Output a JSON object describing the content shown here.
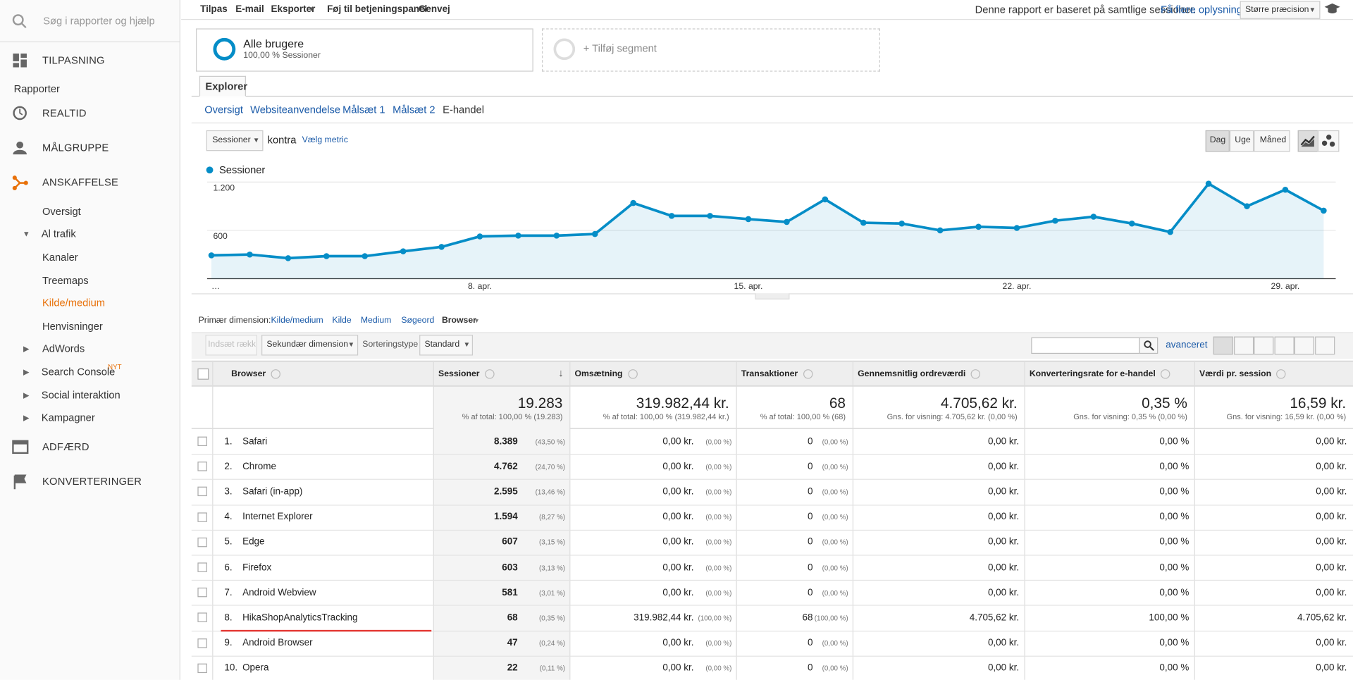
{
  "sidebar": {
    "search": "Søg i rapporter og hjælp",
    "customization": "TILPASNING",
    "reports": "Rapporter",
    "sections": [
      "REALTID",
      "MÅLGRUPPE",
      "ANSKAFFELSE",
      "ADFÆRD",
      "KONVERTERINGER"
    ],
    "acquisition": [
      "Oversigt",
      "Al trafik",
      "Kanaler",
      "Treemaps",
      "Kilde/medium",
      "Henvisninger",
      "AdWords",
      "Search Console",
      "Social interaktion",
      "Kampagner"
    ],
    "badge": "NYT"
  },
  "toolbar": {
    "actions": [
      "Tilpas",
      "E-mail",
      "Eksporter",
      "Føj til betjeningspanel",
      "Genvej"
    ],
    "note": "Denne rapport er baseret på samtlige sessioner.",
    "link": "Få flere oplysninger",
    "precision": "Større præcision"
  },
  "segments": {
    "active": {
      "name": "Alle brugere",
      "detail": "100,00 % Sessioner"
    },
    "add": "+ Tilføj segment"
  },
  "tab": "Explorer",
  "subtabs": [
    "Oversigt",
    "Websiteanvendelse",
    "Målsæt 1",
    "Målsæt 2",
    "E-handel"
  ],
  "metric": {
    "selected": "Sessioner",
    "versus": "kontra",
    "choose": "Vælg metric"
  },
  "granularity": [
    "Dag",
    "Uge",
    "Måned"
  ],
  "chart_data": {
    "type": "area",
    "categories": [
      "…",
      null,
      null,
      null,
      null,
      null,
      null,
      "8. apr.",
      null,
      null,
      null,
      null,
      null,
      null,
      "15. apr.",
      null,
      null,
      null,
      null,
      null,
      null,
      "22. apr.",
      null,
      null,
      null,
      null,
      null,
      null,
      "29. apr.",
      null
    ],
    "series": [
      {
        "name": "Sessioner",
        "color": "#058dc7",
        "values": [
          290,
          300,
          255,
          280,
          280,
          340,
          395,
          525,
          535,
          535,
          555,
          940,
          780,
          780,
          740,
          705,
          985,
          695,
          685,
          600,
          645,
          630,
          720,
          770,
          685,
          580,
          1180,
          900,
          1105,
          845
        ]
      }
    ],
    "ylim": [
      0,
      1200
    ],
    "yticks": [
      600,
      {
        "value": 1200,
        "label": "1.200"
      }
    ],
    "grid": true
  },
  "dimension": {
    "label": "Primær dimension:",
    "options": [
      "Kilde/medium",
      "Kilde",
      "Medium",
      "Søgeord",
      "Browser"
    ]
  },
  "table_tools": {
    "insert_row": "Indsæt række",
    "secondary": "Sekundær dimension",
    "sort_label": "Sorteringstype",
    "sort": "Standard",
    "advanced": "avanceret"
  },
  "table": {
    "headers": [
      "Browser",
      "Sessioner",
      "Omsætning",
      "Transaktioner",
      "Gennemsnitlig ordreværdi",
      "Konverteringsrate for e-handel",
      "Værdi pr. session"
    ],
    "totals": [
      [
        "19.283",
        "% af total: 100,00 % (19.283)"
      ],
      [
        "319.982,44 kr.",
        "% af total: 100,00 % (319.982,44 kr.)"
      ],
      [
        "68",
        "% af total: 100,00 % (68)"
      ],
      [
        "4.705,62 kr.",
        "Gns. for visning: 4.705,62 kr. (0,00 %)"
      ],
      [
        "0,35 %",
        "Gns. for visning: 0,35 % (0,00 %)"
      ],
      [
        "16,59 kr.",
        "Gns. for visning: 16,59 kr. (0,00 %)"
      ]
    ],
    "rows": [
      [
        "1.",
        "Safari",
        "8.389",
        "(43,50 %)",
        "0,00 kr.",
        "(0,00 %)",
        "0",
        "(0,00 %)",
        "0,00 kr.",
        "0,00 %",
        "0,00 kr."
      ],
      [
        "2.",
        "Chrome",
        "4.762",
        "(24,70 %)",
        "0,00 kr.",
        "(0,00 %)",
        "0",
        "(0,00 %)",
        "0,00 kr.",
        "0,00 %",
        "0,00 kr."
      ],
      [
        "3.",
        "Safari (in-app)",
        "2.595",
        "(13,46 %)",
        "0,00 kr.",
        "(0,00 %)",
        "0",
        "(0,00 %)",
        "0,00 kr.",
        "0,00 %",
        "0,00 kr."
      ],
      [
        "4.",
        "Internet Explorer",
        "1.594",
        "(8,27 %)",
        "0,00 kr.",
        "(0,00 %)",
        "0",
        "(0,00 %)",
        "0,00 kr.",
        "0,00 %",
        "0,00 kr."
      ],
      [
        "5.",
        "Edge",
        "607",
        "(3,15 %)",
        "0,00 kr.",
        "(0,00 %)",
        "0",
        "(0,00 %)",
        "0,00 kr.",
        "0,00 %",
        "0,00 kr."
      ],
      [
        "6.",
        "Firefox",
        "603",
        "(3,13 %)",
        "0,00 kr.",
        "(0,00 %)",
        "0",
        "(0,00 %)",
        "0,00 kr.",
        "0,00 %",
        "0,00 kr."
      ],
      [
        "7.",
        "Android Webview",
        "581",
        "(3,01 %)",
        "0,00 kr.",
        "(0,00 %)",
        "0",
        "(0,00 %)",
        "0,00 kr.",
        "0,00 %",
        "0,00 kr."
      ],
      [
        "8.",
        "HikaShopAnalyticsTracking",
        "68",
        "(0,35 %)",
        "319.982,44 kr.",
        "(100,00 %)",
        "68",
        "(100,00 %)",
        "4.705,62 kr.",
        "100,00 %",
        "4.705,62 kr."
      ],
      [
        "9.",
        "Android Browser",
        "47",
        "(0,24 %)",
        "0,00 kr.",
        "(0,00 %)",
        "0",
        "(0,00 %)",
        "0,00 kr.",
        "0,00 %",
        "0,00 kr."
      ],
      [
        "10.",
        "Opera",
        "22",
        "(0,11 %)",
        "0,00 kr.",
        "(0,00 %)",
        "0",
        "(0,00 %)",
        "0,00 kr.",
        "0,00 %",
        "0,00 kr."
      ]
    ]
  }
}
